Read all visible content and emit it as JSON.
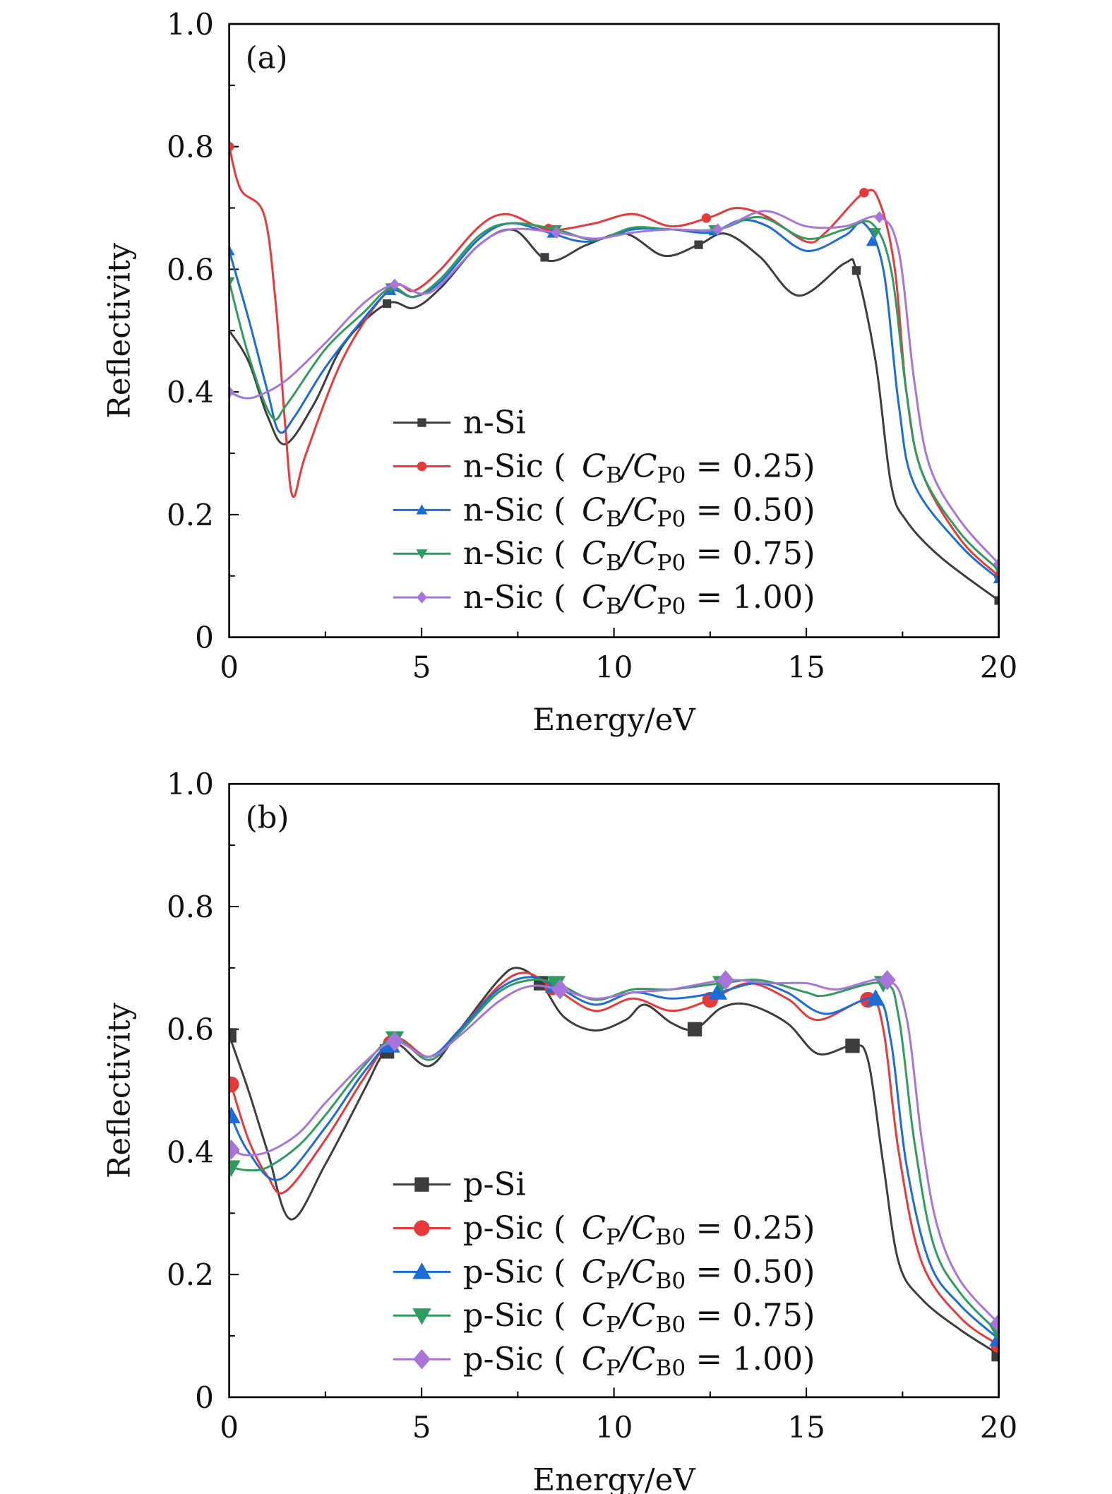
{
  "colors": {
    "n-Si": "#3d3d3d",
    "red": "#e8393a",
    "blue": "#1a6cd6",
    "green": "#2e9c5e",
    "purple": "#a874d9"
  },
  "chart_data": [
    {
      "type": "line",
      "panel_label": "(a)",
      "xlabel": "Energy/eV",
      "ylabel": "Reflectivity",
      "xlim": [
        0,
        20
      ],
      "ylim": [
        0,
        1.0
      ],
      "x_ticks": [
        "0",
        "5",
        "10",
        "15",
        "20"
      ],
      "y_ticks": [
        "0",
        "0.2",
        "0.4",
        "0.6",
        "0.8",
        "1.0"
      ],
      "grid": false,
      "legend_position": "bottom-center",
      "series": [
        {
          "name": "n-Si",
          "legend": {
            "prefix": "n-Si"
          },
          "color": "#3d3d3d",
          "marker": "square",
          "x": [
            0,
            0.5,
            1.0,
            1.46,
            2.2,
            3.0,
            4.1,
            4.8,
            5.5,
            6.5,
            7.4,
            8.3,
            9.3,
            10.3,
            11.3,
            12.2,
            12.9,
            13.8,
            14.8,
            16.0,
            16.3,
            16.8,
            17.2,
            17.6,
            18.5,
            20
          ],
          "y": [
            0.5,
            0.45,
            0.36,
            0.315,
            0.38,
            0.48,
            0.544,
            0.537,
            0.57,
            0.64,
            0.664,
            0.614,
            0.64,
            0.658,
            0.622,
            0.64,
            0.658,
            0.62,
            0.557,
            0.61,
            0.598,
            0.45,
            0.25,
            0.19,
            0.13,
            0.06
          ],
          "markers_x": [
            4.1,
            8.2,
            12.2,
            16.3,
            20
          ]
        },
        {
          "name": "n-Sic (CB/CP0 = 0.25)",
          "legend": {
            "prefix": "n-Sic (",
            "num_sub": "B",
            "den_sub": "P0",
            "value": "0.25)"
          },
          "color": "#e8393a",
          "marker": "circle",
          "x": [
            0,
            0.3,
            0.9,
            1.2,
            1.45,
            1.65,
            2.0,
            3.0,
            4.2,
            4.8,
            5.5,
            6.5,
            7.2,
            8.0,
            8.5,
            9.5,
            10.5,
            11.5,
            12.5,
            13.2,
            14.0,
            15.0,
            15.5,
            16.5,
            16.9,
            17.3,
            17.6,
            18.0,
            19,
            20
          ],
          "y": [
            0.8,
            0.73,
            0.69,
            0.55,
            0.35,
            0.23,
            0.3,
            0.46,
            0.57,
            0.565,
            0.6,
            0.67,
            0.69,
            0.67,
            0.664,
            0.675,
            0.69,
            0.67,
            0.685,
            0.7,
            0.685,
            0.645,
            0.66,
            0.725,
            0.71,
            0.6,
            0.4,
            0.27,
            0.16,
            0.1
          ],
          "markers_x": [
            0,
            4.2,
            8.3,
            12.4,
            16.5,
            20
          ]
        },
        {
          "name": "n-Sic (CB/CP0 = 0.50)",
          "legend": {
            "prefix": "n-Sic (",
            "num_sub": "B",
            "den_sub": "P0",
            "value": "0.50)"
          },
          "color": "#1a6cd6",
          "marker": "triangle-up",
          "x": [
            0,
            0.5,
            1.0,
            1.3,
            1.7,
            2.5,
            3.5,
            4.2,
            4.8,
            5.5,
            6.5,
            7.3,
            8.3,
            9.3,
            10.5,
            11.5,
            12.5,
            13.3,
            14.0,
            15.0,
            16.0,
            16.5,
            17.0,
            17.4,
            17.8,
            19,
            20
          ],
          "y": [
            0.63,
            0.52,
            0.4,
            0.335,
            0.36,
            0.44,
            0.52,
            0.565,
            0.555,
            0.58,
            0.65,
            0.675,
            0.66,
            0.645,
            0.665,
            0.665,
            0.66,
            0.68,
            0.67,
            0.63,
            0.655,
            0.675,
            0.6,
            0.38,
            0.25,
            0.15,
            0.095
          ],
          "markers_x": [
            0,
            4.2,
            8.4,
            12.6,
            16.7,
            20
          ]
        },
        {
          "name": "n-Sic (CB/CP0 = 0.75)",
          "legend": {
            "prefix": "n-Sic (",
            "num_sub": "B",
            "den_sub": "P0",
            "value": "0.75)"
          },
          "color": "#2e9c5e",
          "marker": "triangle-down",
          "x": [
            0,
            0.5,
            1.1,
            1.5,
            2.5,
            3.5,
            4.2,
            4.8,
            5.5,
            6.5,
            7.3,
            8.5,
            9.5,
            10.5,
            11.5,
            12.7,
            13.8,
            15.0,
            16.0,
            16.7,
            17.2,
            17.6,
            18.0,
            19,
            20
          ],
          "y": [
            0.58,
            0.46,
            0.36,
            0.38,
            0.47,
            0.53,
            0.57,
            0.555,
            0.585,
            0.655,
            0.675,
            0.665,
            0.648,
            0.668,
            0.665,
            0.665,
            0.685,
            0.65,
            0.665,
            0.675,
            0.6,
            0.4,
            0.27,
            0.17,
            0.11
          ],
          "markers_x": [
            0,
            4.2,
            8.5,
            12.6,
            16.8,
            20
          ]
        },
        {
          "name": "n-Sic (CB/CP0 = 1.00)",
          "legend": {
            "prefix": "n-Sic (",
            "num_sub": "B",
            "den_sub": "P0",
            "value": "1.00)"
          },
          "color": "#a874d9",
          "marker": "diamond",
          "x": [
            0,
            0.4,
            0.8,
            1.5,
            2.5,
            3.5,
            4.3,
            5.0,
            5.5,
            6.5,
            7.3,
            8.5,
            9.5,
            10.5,
            11.5,
            12.7,
            13.9,
            15.0,
            16.0,
            16.9,
            17.4,
            17.8,
            18.2,
            19,
            20
          ],
          "y": [
            0.4,
            0.39,
            0.395,
            0.42,
            0.48,
            0.545,
            0.575,
            0.56,
            0.575,
            0.64,
            0.665,
            0.66,
            0.65,
            0.66,
            0.665,
            0.665,
            0.695,
            0.67,
            0.67,
            0.685,
            0.63,
            0.42,
            0.28,
            0.19,
            0.12
          ],
          "markers_x": [
            0,
            4.3,
            8.5,
            12.7,
            16.9,
            20
          ]
        }
      ]
    },
    {
      "type": "line",
      "panel_label": "(b)",
      "xlabel": "Energy/eV",
      "ylabel": "Reflectivity",
      "xlim": [
        0,
        20
      ],
      "ylim": [
        0,
        1.0
      ],
      "x_ticks": [
        "0",
        "5",
        "10",
        "15",
        "20"
      ],
      "y_ticks": [
        "0",
        "0.2",
        "0.4",
        "0.6",
        "0.8",
        "1.0"
      ],
      "grid": false,
      "legend_position": "bottom-center",
      "series": [
        {
          "name": "p-Si",
          "legend": {
            "prefix": "p-Si"
          },
          "color": "#3d3d3d",
          "marker": "square",
          "x": [
            0,
            0.5,
            1.0,
            1.6,
            2.5,
            3.5,
            4.0,
            4.4,
            5.2,
            6.0,
            7.0,
            7.5,
            8.1,
            8.7,
            9.5,
            10.3,
            10.8,
            11.5,
            12.1,
            12.8,
            13.5,
            14.5,
            15.3,
            16.2,
            16.6,
            17.0,
            17.4,
            18,
            19,
            20
          ],
          "y": [
            0.59,
            0.5,
            0.4,
            0.29,
            0.38,
            0.5,
            0.56,
            0.575,
            0.54,
            0.6,
            0.68,
            0.7,
            0.675,
            0.62,
            0.598,
            0.615,
            0.64,
            0.61,
            0.6,
            0.635,
            0.64,
            0.61,
            0.56,
            0.573,
            0.55,
            0.38,
            0.22,
            0.16,
            0.11,
            0.07
          ],
          "markers_x": [
            0,
            4.1,
            8.1,
            12.1,
            16.2,
            20
          ]
        },
        {
          "name": "p-Sic (CP/CB0 = 0.25)",
          "legend": {
            "prefix": "p-Sic (",
            "num_sub": "P",
            "den_sub": "B0",
            "value": "0.25)"
          },
          "color": "#e8393a",
          "marker": "circle",
          "x": [
            0,
            0.5,
            1.0,
            1.45,
            2.5,
            3.5,
            4.3,
            5.2,
            6.0,
            7.0,
            7.7,
            8.5,
            9.5,
            10.5,
            11.5,
            12.5,
            13.5,
            14.5,
            15.3,
            16.6,
            17.0,
            17.4,
            18,
            19,
            20
          ],
          "y": [
            0.52,
            0.42,
            0.36,
            0.335,
            0.42,
            0.52,
            0.585,
            0.555,
            0.6,
            0.67,
            0.692,
            0.665,
            0.63,
            0.65,
            0.63,
            0.648,
            0.675,
            0.65,
            0.615,
            0.648,
            0.6,
            0.4,
            0.22,
            0.13,
            0.085
          ],
          "markers_x": [
            0.05,
            4.2,
            8.4,
            12.5,
            16.6,
            20
          ]
        },
        {
          "name": "p-Sic (CP/CB0 = 0.50)",
          "legend": {
            "prefix": "p-Sic (",
            "num_sub": "P",
            "den_sub": "B0",
            "value": "0.50)"
          },
          "color": "#1a6cd6",
          "marker": "triangle-up",
          "x": [
            0,
            0.5,
            1.3,
            2.5,
            3.5,
            4.3,
            5.2,
            6.0,
            7.0,
            7.8,
            8.5,
            9.5,
            10.5,
            11.5,
            12.7,
            13.7,
            14.5,
            15.5,
            16.8,
            17.2,
            17.6,
            18.2,
            19,
            20
          ],
          "y": [
            0.465,
            0.4,
            0.355,
            0.44,
            0.53,
            0.58,
            0.555,
            0.6,
            0.665,
            0.685,
            0.67,
            0.64,
            0.66,
            0.65,
            0.66,
            0.675,
            0.66,
            0.625,
            0.65,
            0.58,
            0.38,
            0.22,
            0.15,
            0.095
          ],
          "markers_x": [
            0.05,
            4.2,
            8.45,
            12.7,
            16.8,
            20
          ]
        },
        {
          "name": "p-Sic (CP/CB0 = 0.75)",
          "legend": {
            "prefix": "p-Sic (",
            "num_sub": "P",
            "den_sub": "B0",
            "value": "0.75)"
          },
          "color": "#2e9c5e",
          "marker": "triangle-down",
          "x": [
            0,
            0.5,
            1.0,
            1.8,
            2.5,
            3.5,
            4.3,
            5.2,
            6.0,
            7.0,
            7.8,
            8.5,
            9.5,
            10.5,
            11.5,
            12.8,
            13.8,
            15.0,
            15.5,
            17.0,
            17.4,
            17.8,
            18.3,
            19,
            20
          ],
          "y": [
            0.375,
            0.37,
            0.375,
            0.41,
            0.46,
            0.54,
            0.585,
            0.55,
            0.595,
            0.66,
            0.68,
            0.675,
            0.648,
            0.665,
            0.665,
            0.675,
            0.68,
            0.66,
            0.655,
            0.675,
            0.62,
            0.42,
            0.25,
            0.17,
            0.105
          ],
          "markers_x": [
            0.05,
            4.3,
            8.5,
            12.8,
            17.0,
            20
          ]
        },
        {
          "name": "p-Sic (CP/CB0 = 1.00)",
          "legend": {
            "prefix": "p-Sic (",
            "num_sub": "P",
            "den_sub": "B0",
            "value": "1.00)"
          },
          "color": "#a874d9",
          "marker": "diamond",
          "x": [
            0,
            0.4,
            1.0,
            1.8,
            2.5,
            3.5,
            4.3,
            5.2,
            6.0,
            7.0,
            7.8,
            8.6,
            9.5,
            10.5,
            11.5,
            12.9,
            14.0,
            15.0,
            15.8,
            17.1,
            17.6,
            18.0,
            18.4,
            19,
            20
          ],
          "y": [
            0.405,
            0.395,
            0.4,
            0.43,
            0.48,
            0.545,
            0.58,
            0.555,
            0.59,
            0.645,
            0.67,
            0.665,
            0.65,
            0.66,
            0.665,
            0.68,
            0.675,
            0.675,
            0.665,
            0.68,
            0.62,
            0.42,
            0.28,
            0.19,
            0.12
          ],
          "markers_x": [
            0.05,
            4.3,
            8.6,
            12.9,
            17.1,
            20
          ]
        }
      ]
    }
  ]
}
